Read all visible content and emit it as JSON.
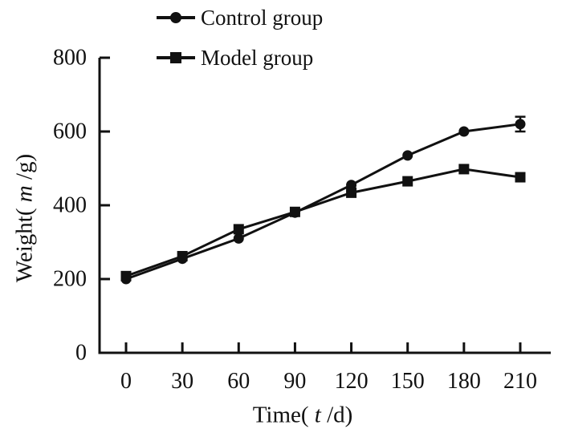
{
  "figure": {
    "background": "#ffffff",
    "ink_color": "#111111"
  },
  "chart_data": {
    "type": "line",
    "title": "",
    "xlabel": "Time( t /d)",
    "ylabel": "Weight( m /g)",
    "xlabel_parts": {
      "pre": "Time( ",
      "var": "t",
      "post": " /d)"
    },
    "ylabel_parts": {
      "pre": "Weight( ",
      "var": "m",
      "post": " /g)"
    },
    "x": [
      0,
      30,
      60,
      90,
      120,
      150,
      180,
      210
    ],
    "xticks": [
      0,
      30,
      60,
      90,
      120,
      150,
      180,
      210
    ],
    "yticks": [
      0,
      200,
      400,
      600,
      800
    ],
    "xlim": [
      0,
      210
    ],
    "ylim": [
      0,
      800
    ],
    "grid": false,
    "legend_position": "above-plot-left",
    "series": [
      {
        "name": "Control group",
        "marker": "circle",
        "color": "#111111",
        "values": [
          200,
          255,
          310,
          380,
          455,
          535,
          600,
          620
        ],
        "error_bars": [
          {
            "x": 210,
            "plus": 20,
            "minus": 20
          }
        ]
      },
      {
        "name": "Model group",
        "marker": "square",
        "color": "#111111",
        "values": [
          208,
          262,
          335,
          382,
          434,
          465,
          498,
          476
        ],
        "error_bars": []
      }
    ]
  }
}
